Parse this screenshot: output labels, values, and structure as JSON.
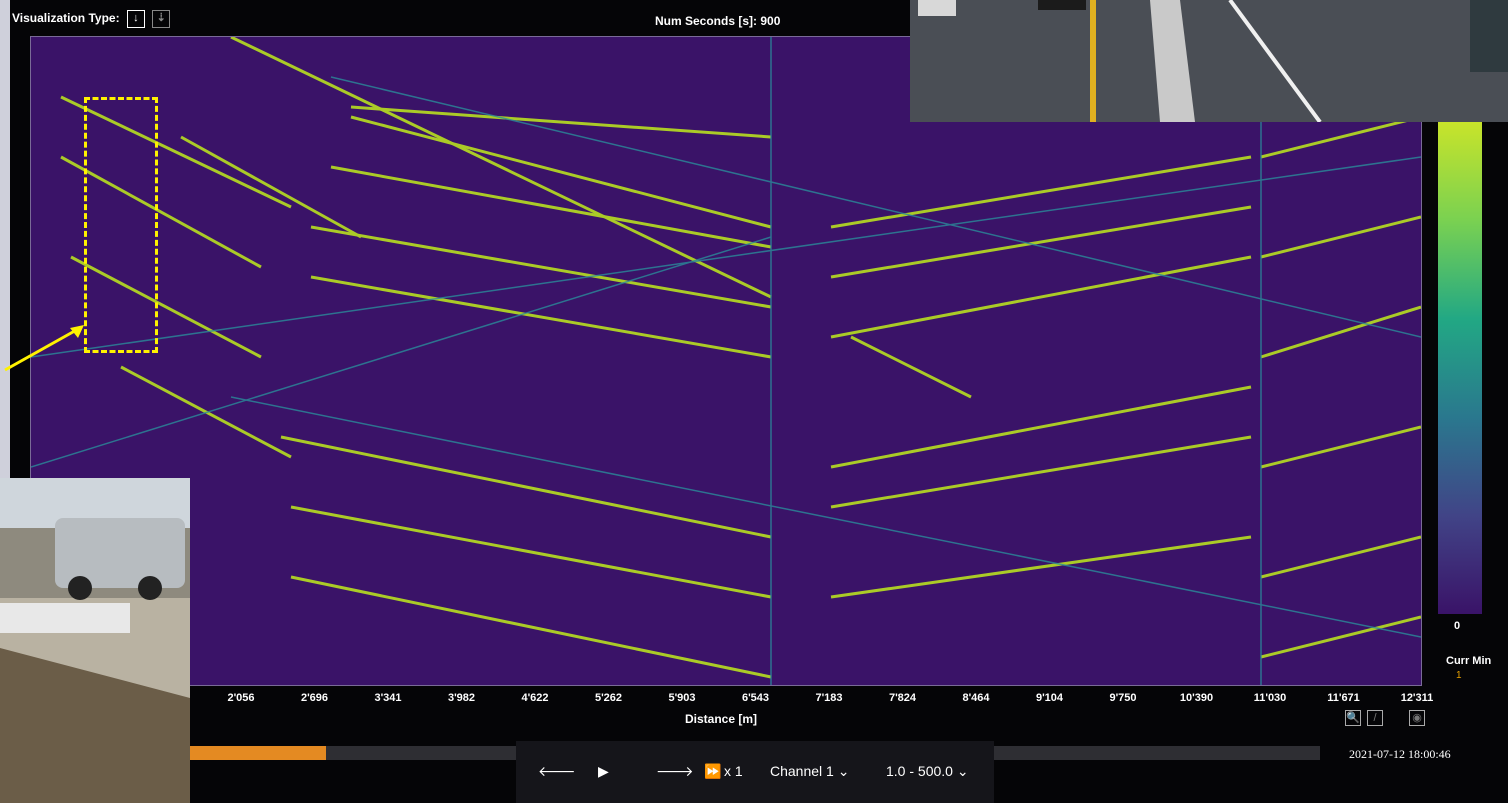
{
  "header": {
    "vis_type_label": "Visualization Type:",
    "vis_icon_active": "arrow-down-icon",
    "vis_icon_inactive": "waveform-icon",
    "num_seconds": "Num Seconds [s]: 900"
  },
  "plot": {
    "xlabel": "Distance [m]",
    "xticks": [
      "2'056",
      "2'696",
      "3'341",
      "3'982",
      "4'622",
      "5'262",
      "5'903",
      "6'543",
      "7'183",
      "7'824",
      "8'464",
      "9'104",
      "9'750",
      "10'390",
      "11'030",
      "11'671",
      "12'311"
    ]
  },
  "colorbar": {
    "zero_label": "0",
    "curr_min_label": "Curr Min",
    "curr_min_value": "1",
    "top_color": "#c8e42a",
    "bottom_color": "#3a1368"
  },
  "tools": {
    "zoom_icon": "zoom-icon",
    "pen_icon": "pen-icon",
    "eye_icon": "eye-icon"
  },
  "playback": {
    "timestamp": "2021-07-12 18:00:46",
    "progress_percent": 12,
    "speed_label": "x 1",
    "channel_select": "Channel 1",
    "range_select": "1.0 - 500.0",
    "progress_color": "#e48a22"
  }
}
